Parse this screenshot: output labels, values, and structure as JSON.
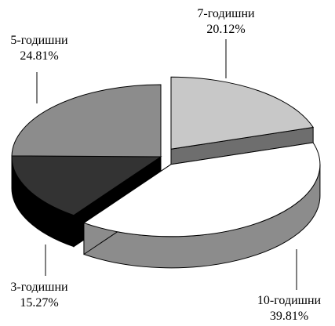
{
  "chart_data": {
    "type": "pie",
    "title": "",
    "slices": [
      {
        "label": "7-годишни",
        "value": 20.12,
        "display": "20.12%",
        "color": "#c8c8c8",
        "side_color": "#6e6e6e",
        "exploded": true
      },
      {
        "label": "10-годишни",
        "value": 39.81,
        "display": "39.81%",
        "color": "#ffffff",
        "side_color": "#8c8c8c",
        "exploded": true
      },
      {
        "label": "3-годишни",
        "value": 15.27,
        "display": "15.27%",
        "color": "#333333",
        "side_color": "#000000",
        "exploded": false
      },
      {
        "label": "5-годишни",
        "value": 24.81,
        "display": "24.81%",
        "color": "#8c8c8c",
        "side_color": "#555555",
        "exploded": false
      }
    ],
    "style": "3d-exploded",
    "legend": "none",
    "start_angle_deg": -90
  }
}
